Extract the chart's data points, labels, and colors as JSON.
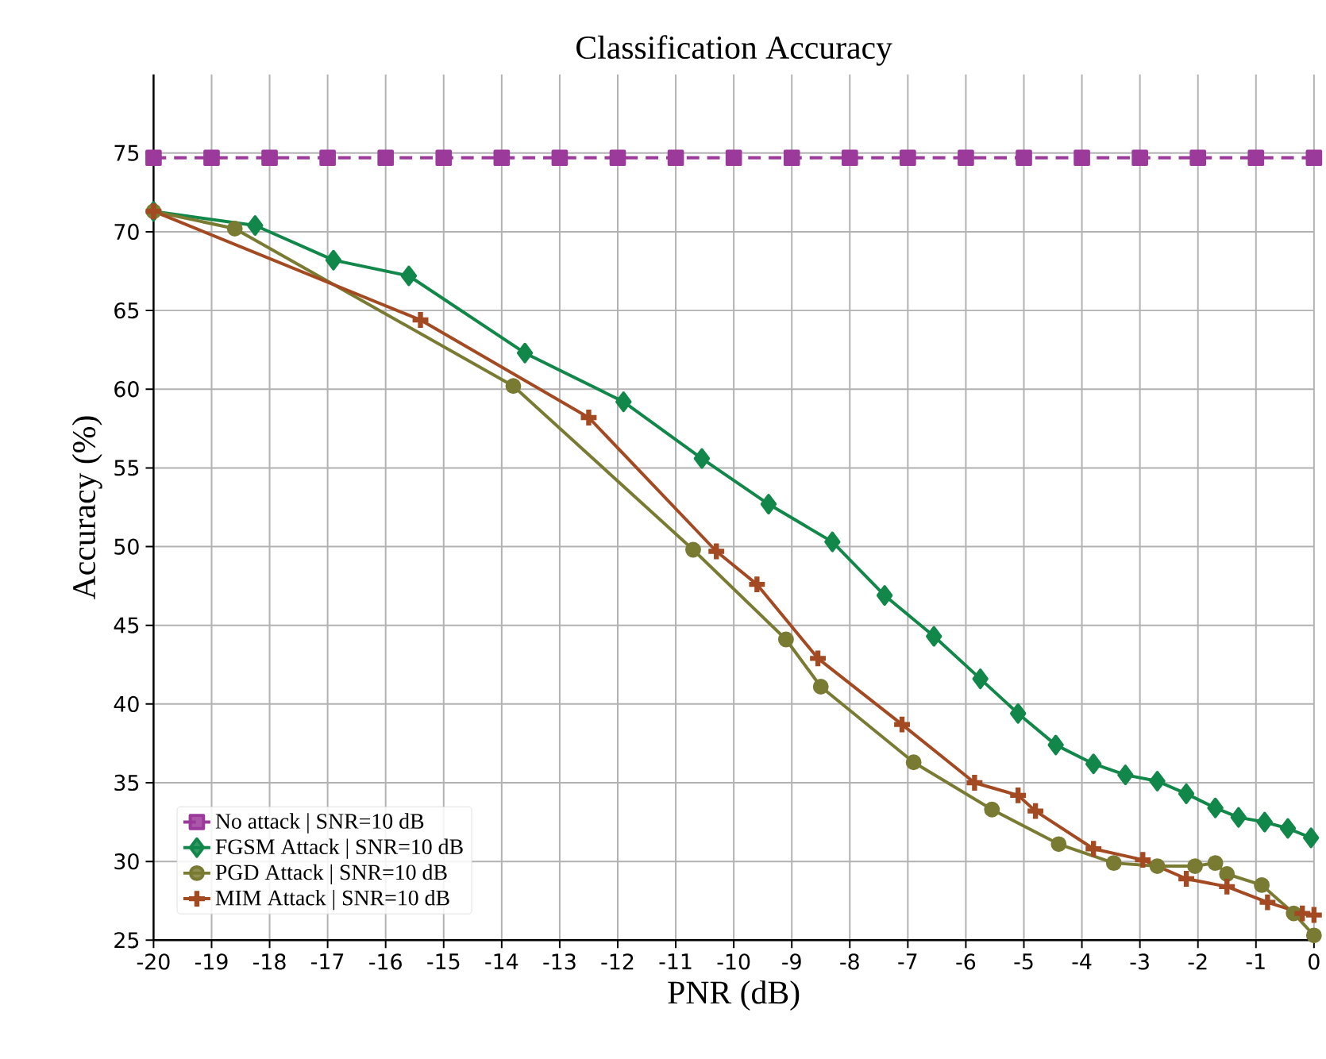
{
  "chart_data": {
    "type": "line",
    "title": "Classification Accuracy",
    "xlabel": "PNR (dB)",
    "ylabel": "Accuracy (%)",
    "xlim": [
      -20,
      0
    ],
    "xticks": [
      -20,
      -19,
      -18,
      -17,
      -16,
      -15,
      -14,
      -13,
      -12,
      -11,
      -10,
      -9,
      -8,
      -7,
      -6,
      -5,
      -4,
      -3,
      -2,
      -1,
      0
    ],
    "ylim": [
      25,
      80
    ],
    "yticks": [
      25,
      30,
      35,
      40,
      45,
      50,
      55,
      60,
      65,
      70,
      75
    ],
    "grid": true,
    "legend": "bottom left",
    "series": [
      {
        "name": "No attack | SNR=10 dB",
        "color": "#9b3a9b",
        "marker": "square",
        "line_style": "dashed",
        "x": [
          -20,
          -19,
          -18,
          -17,
          -16,
          -15,
          -14,
          -13,
          -12,
          -11,
          -10,
          -9,
          -8,
          -7,
          -6,
          -5,
          -4,
          -3,
          -2,
          -1,
          0
        ],
        "values": [
          74.7,
          74.7,
          74.7,
          74.7,
          74.7,
          74.7,
          74.7,
          74.7,
          74.7,
          74.7,
          74.7,
          74.7,
          74.7,
          74.7,
          74.7,
          74.7,
          74.7,
          74.7,
          74.7,
          74.7,
          74.7
        ]
      },
      {
        "name": "FGSM Attack | SNR=10 dB",
        "color": "#11874a",
        "marker": "diamond",
        "line_style": "solid",
        "x": [
          -20,
          -18.25,
          -16.9,
          -15.6,
          -13.6,
          -11.9,
          -10.55,
          -9.4,
          -8.3,
          -7.4,
          -6.55,
          -5.75,
          -5.1,
          -4.45,
          -3.8,
          -3.25,
          -2.7,
          -2.2,
          -1.7,
          -1.3,
          -0.85,
          -0.45,
          -0.05
        ],
        "values": [
          71.3,
          70.4,
          68.2,
          67.2,
          62.3,
          59.2,
          55.6,
          52.7,
          50.3,
          46.9,
          44.3,
          41.6,
          39.4,
          37.4,
          36.2,
          35.5,
          35.1,
          34.3,
          33.4,
          32.8,
          32.5,
          32.1,
          31.5
        ]
      },
      {
        "name": "PGD Attack | SNR=10 dB",
        "color": "#7a7b33",
        "marker": "circle",
        "line_style": "solid",
        "x": [
          -20,
          -18.6,
          -13.8,
          -10.7,
          -9.1,
          -8.5,
          -6.9,
          -5.55,
          -4.4,
          -3.45,
          -2.7,
          -2.05,
          -1.7,
          -1.5,
          -0.9,
          -0.35,
          0
        ],
        "values": [
          71.3,
          70.2,
          60.2,
          49.8,
          44.1,
          41.1,
          36.3,
          33.3,
          31.1,
          29.9,
          29.7,
          29.7,
          29.9,
          29.2,
          28.5,
          26.7,
          25.3
        ]
      },
      {
        "name": "MIM Attack | SNR=10 dB",
        "color": "#a34a22",
        "marker": "cross",
        "line_style": "solid",
        "x": [
          -20,
          -15.4,
          -12.5,
          -10.3,
          -9.6,
          -8.55,
          -7.1,
          -5.85,
          -5.1,
          -4.8,
          -3.8,
          -2.95,
          -2.2,
          -1.5,
          -0.8,
          -0.2,
          0
        ],
        "values": [
          71.3,
          64.4,
          58.2,
          49.7,
          47.6,
          42.9,
          38.7,
          35.0,
          34.2,
          33.2,
          30.8,
          30.1,
          28.9,
          28.4,
          27.4,
          26.7,
          26.6
        ]
      }
    ]
  }
}
